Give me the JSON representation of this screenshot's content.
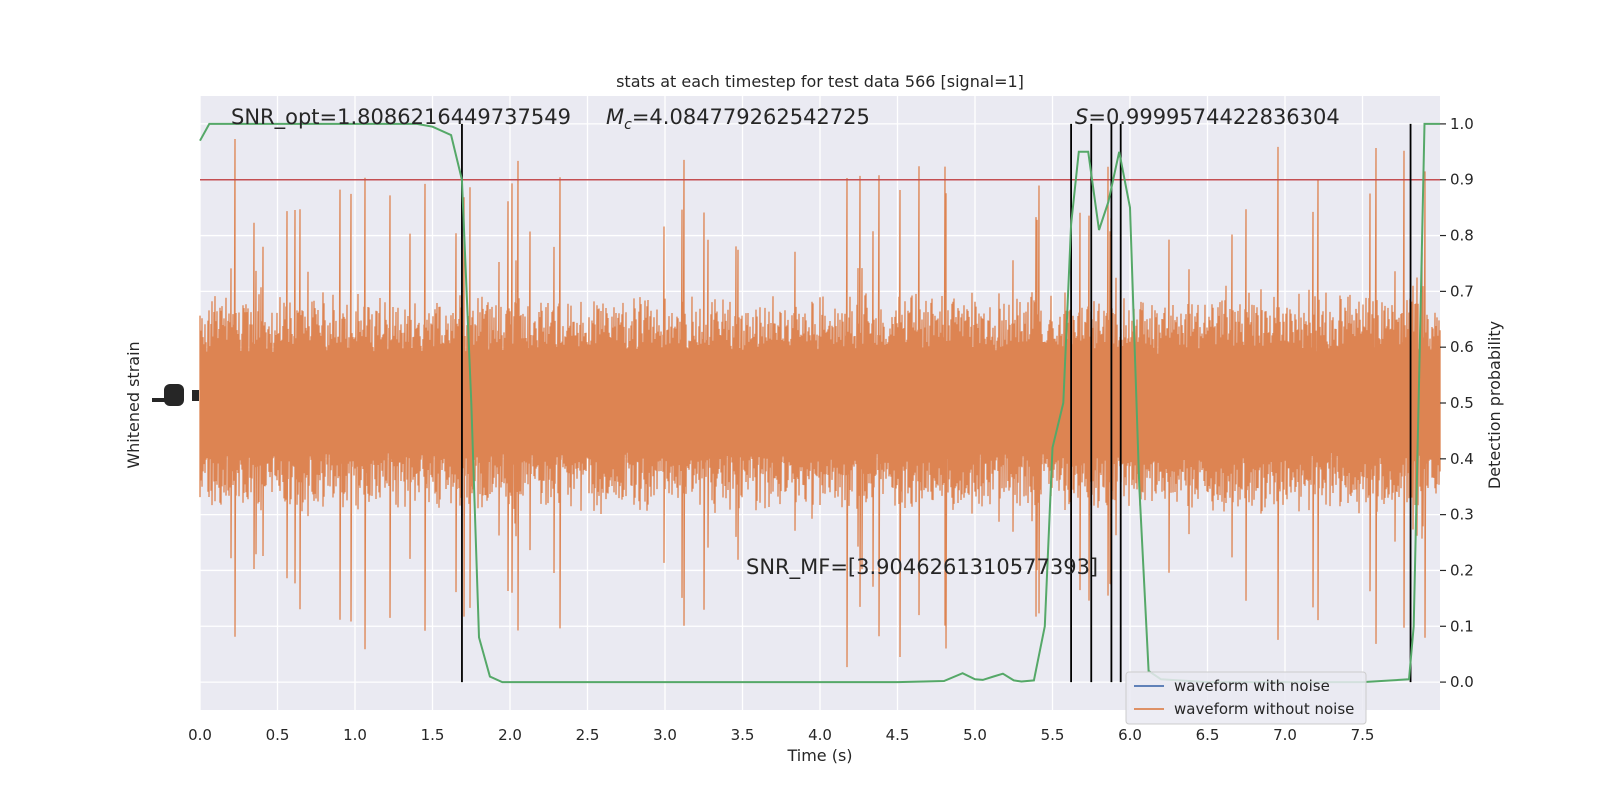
{
  "chart_data": {
    "type": "line",
    "title": "stats at each timestep for test data 566 [signal=1]",
    "xlabel": "Time (s)",
    "ylabel_left": "Whitened strain",
    "ylabel_right": "Detection probability",
    "xlim": [
      0,
      8
    ],
    "ylim_right": [
      -0.05,
      1.05
    ],
    "x_ticks": [
      0.0,
      0.5,
      1.0,
      1.5,
      2.0,
      2.5,
      3.0,
      3.5,
      4.0,
      4.5,
      5.0,
      5.5,
      6.0,
      6.5,
      7.0,
      7.5
    ],
    "x_tick_labels": [
      "0.0",
      "0.5",
      "1.0",
      "1.5",
      "2.0",
      "2.5",
      "3.0",
      "3.5",
      "4.0",
      "4.5",
      "5.0",
      "5.5",
      "6.0",
      "6.5",
      "7.0",
      "7.5"
    ],
    "y_ticks_right": [
      0.0,
      0.1,
      0.2,
      0.3,
      0.4,
      0.5,
      0.6,
      0.7,
      0.8,
      0.9,
      1.0
    ],
    "y_tick_labels_right": [
      "0.0",
      "0.1",
      "0.2",
      "0.3",
      "0.4",
      "0.5",
      "0.6",
      "0.7",
      "0.8",
      "0.9",
      "1.0"
    ],
    "grid": true,
    "threshold": 0.9,
    "vertical_lines": [
      1.69,
      5.62,
      5.75,
      5.88,
      5.94,
      7.81
    ],
    "annotations": {
      "snr_opt": "SNR_opt=1.8086216449737549",
      "mc_symbol": "M",
      "mc_sub": "c",
      "mc_value": "=4.084779262542725",
      "s_symbol": "S",
      "s_value": "=0.9999574422836304",
      "snr_mf": "SNR_MF=[3.9046261310577393]"
    },
    "series": [
      {
        "name": "waveform with noise",
        "color": "#4c72b0",
        "note": "fully covered by the orange trace"
      },
      {
        "name": "waveform without noise",
        "color": "#dd8452",
        "band_center": 0.5,
        "typical_amplitude": 0.2,
        "peak_amplitude": 0.5
      },
      {
        "color": "#55a868",
        "x": [
          0.0,
          0.06,
          0.2,
          0.5,
          1.0,
          1.4,
          1.5,
          1.62,
          1.69,
          1.75,
          1.8,
          1.87,
          1.95,
          2.0,
          2.5,
          3.0,
          3.5,
          4.0,
          4.5,
          4.8,
          4.92,
          5.0,
          5.05,
          5.12,
          5.18,
          5.25,
          5.3,
          5.38,
          5.45,
          5.5,
          5.57,
          5.62,
          5.67,
          5.73,
          5.8,
          5.86,
          5.93,
          6.0,
          6.06,
          6.12,
          6.2,
          6.5,
          7.0,
          7.5,
          7.8,
          7.83,
          7.87,
          7.9,
          7.95,
          8.0
        ],
        "values": [
          0.97,
          1.0,
          1.0,
          1.0,
          1.0,
          1.0,
          0.995,
          0.98,
          0.9,
          0.5,
          0.08,
          0.01,
          0.0,
          0.0,
          0.0,
          0.0,
          0.0,
          0.0,
          0.0,
          0.002,
          0.016,
          0.005,
          0.004,
          0.01,
          0.015,
          0.003,
          0.001,
          0.003,
          0.1,
          0.42,
          0.5,
          0.82,
          0.95,
          0.95,
          0.81,
          0.86,
          0.95,
          0.85,
          0.35,
          0.02,
          0.005,
          0.0,
          0.0,
          0.0,
          0.005,
          0.1,
          0.6,
          1.0,
          1.0,
          1.0
        ]
      }
    ],
    "colors": {
      "background": "#eaeaf2",
      "grid": "#ffffff",
      "threshold_line": "#c44e52",
      "vertical_line": "#000000"
    },
    "legend": {
      "placement": "lower-right"
    }
  }
}
